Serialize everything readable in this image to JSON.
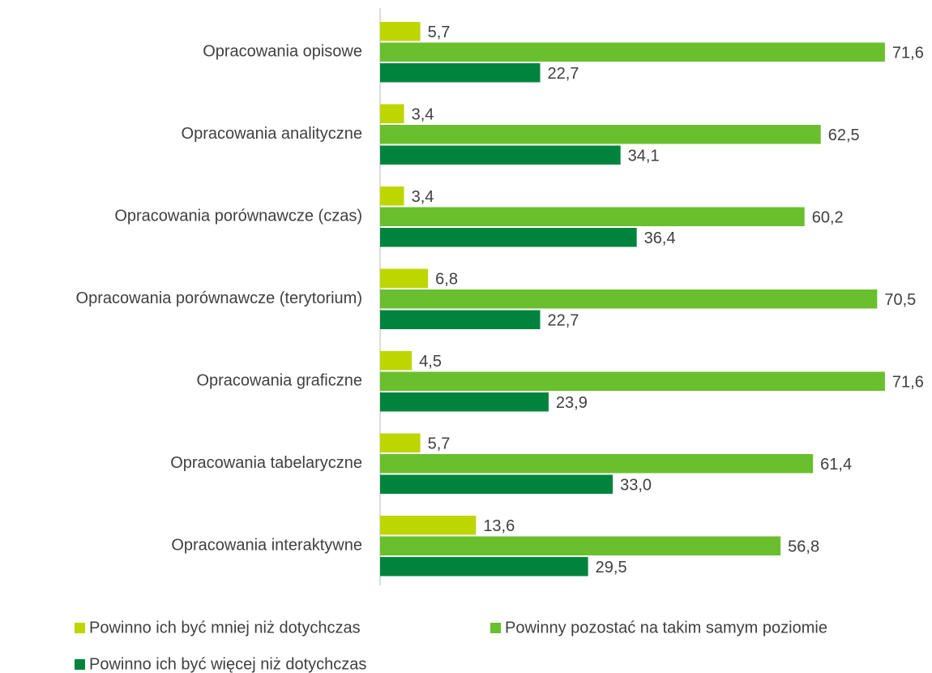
{
  "chart_data": {
    "type": "hbar",
    "categories": [
      "Opracowania opisowe",
      "Opracowania analityczne",
      "Opracowania porównawcze (czas)",
      "Opracowania porównawcze (terytorium)",
      "Opracowania graficzne",
      "Opracowania tabelaryczne",
      "Opracowania interaktywne"
    ],
    "series": [
      {
        "name": "Powinno ich być mniej niż dotychczas",
        "color": "#bdd600",
        "values": [
          5.7,
          3.4,
          3.4,
          6.8,
          4.5,
          5.7,
          13.6
        ],
        "value_labels": [
          "5,7",
          "3,4",
          "3,4",
          "6,8",
          "4,5",
          "5,7",
          "13,6"
        ]
      },
      {
        "name": "Powinny pozostać na takim samym poziomie",
        "color": "#6abf2d",
        "values": [
          71.6,
          62.5,
          60.2,
          70.5,
          71.6,
          61.4,
          56.8
        ],
        "value_labels": [
          "71,6",
          "62,5",
          "60,2",
          "70,5",
          "71,6",
          "61,4",
          "56,8"
        ]
      },
      {
        "name": "Powinno ich być więcej niż dotychczas",
        "color": "#00843d",
        "values": [
          22.7,
          34.1,
          36.4,
          22.7,
          23.9,
          33.0,
          29.5
        ],
        "value_labels": [
          "22,7",
          "34,1",
          "36,4",
          "22,7",
          "23,9",
          "33,0",
          "29,5"
        ]
      }
    ],
    "legend": "bottom"
  }
}
